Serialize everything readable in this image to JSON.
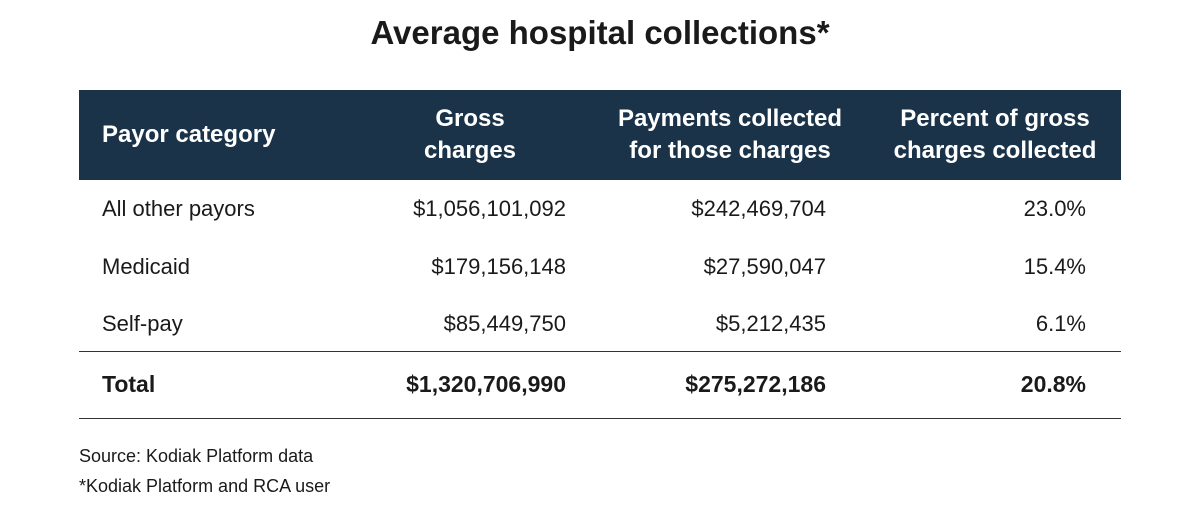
{
  "title": "Average hospital collections*",
  "table": {
    "header": [
      [
        "Payor category"
      ],
      [
        "Gross",
        "charges"
      ],
      [
        "Payments collected",
        "for those charges"
      ],
      [
        "Percent of gross",
        "charges collected"
      ]
    ],
    "rows": [
      [
        "All other payors",
        "$1,056,101,092",
        "$242,469,704",
        "23.0%"
      ],
      [
        "Medicaid",
        "$179,156,148",
        "$27,590,047",
        "15.4%"
      ],
      [
        "Self-pay",
        "$85,449,750",
        "$5,212,435",
        "6.1%"
      ]
    ],
    "total": [
      "Total",
      "$1,320,706,990",
      "$275,272,186",
      "20.8%"
    ]
  },
  "notes": [
    "Source: Kodiak Platform data",
    "*Kodiak Platform and RCA user"
  ]
}
